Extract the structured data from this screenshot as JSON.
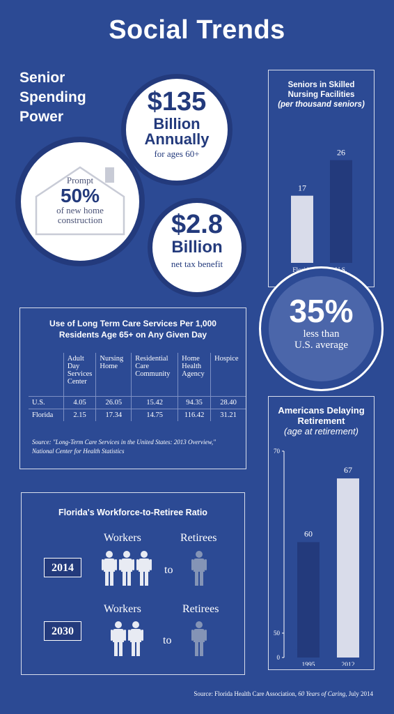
{
  "page": {
    "title": "Social Trends"
  },
  "senior_spending": {
    "heading_lines": [
      "Senior",
      "Spending",
      "Power"
    ],
    "annual": {
      "amount": "$135",
      "line1": "Billion",
      "line2": "Annually",
      "sub": "for ages 60+"
    },
    "housing": {
      "prompt": "Prompt",
      "percent": "50%",
      "line1": "of new home",
      "line2": "construction"
    },
    "tax": {
      "amount": "$2.8",
      "line1": "Billion",
      "sub": "net tax benefit"
    }
  },
  "skilled_nursing": {
    "title_line1": "Seniors in Skilled",
    "title_line2": "Nursing Facilities",
    "subtitle": "(per thousand seniors)",
    "chart_data": {
      "type": "bar",
      "title": "Seniors in Skilled Nursing Facilities",
      "subtitle": "(per thousand seniors)",
      "categories": [
        "Florida",
        "U.S."
      ],
      "values": [
        17,
        26
      ],
      "colors": [
        "#d9dcea",
        "#233a7c"
      ],
      "ylim": [
        0,
        30
      ]
    }
  },
  "comparison": {
    "percent": "35%",
    "line1": "less than",
    "line2": "U.S. average"
  },
  "long_term_care": {
    "title_line1": "Use of Long Term Care Services Per 1,000",
    "title_line2": "Residents Age 65+ on Any Given Day",
    "columns": [
      "",
      "Adult Day Services Center",
      "Nursing Home",
      "Residential Care Community",
      "Home Health Agency",
      "Hospice"
    ],
    "rows": [
      [
        "U.S.",
        "4.05",
        "26.05",
        "15.42",
        "94.35",
        "28.40"
      ],
      [
        "Florida",
        "2.15",
        "17.34",
        "14.75",
        "116.42",
        "31.21"
      ]
    ],
    "source_line1": "Source: \"Long-Term Care Services in the United States: 2013 Overview,\"",
    "source_line2": "National Center for Health Statistics"
  },
  "workforce": {
    "title": "Florida's Workforce-to-Retiree Ratio",
    "workers_label": "Workers",
    "retirees_label": "Retirees",
    "to_label": "to",
    "rows": [
      {
        "year": "2014",
        "workers": 3,
        "retirees": 1
      },
      {
        "year": "2030",
        "workers": 2,
        "retirees": 1
      }
    ]
  },
  "retirement": {
    "title_line1": "Americans Delaying",
    "title_line2": "Retirement",
    "subtitle": "(age at retirement)",
    "chart_data": {
      "type": "bar",
      "title": "Americans Delaying Retirement",
      "subtitle": "(age at retirement)",
      "categories": [
        "1995",
        "2012"
      ],
      "values": [
        60,
        67
      ],
      "colors": [
        "#233a7c",
        "#d9dcea"
      ],
      "y_ticks": [
        "70",
        "50",
        "0"
      ],
      "ylim": [
        0,
        70
      ],
      "axis_break": true
    }
  },
  "footer": {
    "source_prefix": "Source: Florida Health Care Association,",
    "source_title": "60 Years of Caring",
    "source_suffix": ", July 2014"
  },
  "colors": {
    "background": "#2c4a94",
    "navy": "#233a7c",
    "light": "#d9dcea",
    "retiree": "#8494b6"
  }
}
